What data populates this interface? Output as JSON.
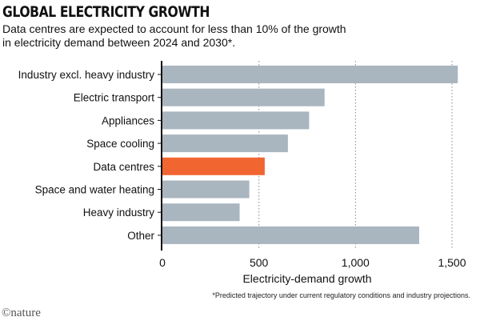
{
  "chart_data": {
    "type": "bar",
    "orientation": "horizontal",
    "title": "GLOBAL ELECTRICITY GROWTH",
    "subtitle": "Data centres are expected to account for less than 10% of the growth in electricity demand between 2024 and 2030*.",
    "categories": [
      "Industry excl. heavy industry",
      "Electric transport",
      "Appliances",
      "Space cooling",
      "Data centres",
      "Space and water heating",
      "Heavy industry",
      "Other"
    ],
    "values": [
      1530,
      840,
      760,
      650,
      530,
      450,
      400,
      1330
    ],
    "highlight": "Data centres",
    "colors": {
      "default": "#a9b5bf",
      "highlight": "#f06530",
      "axis": "#111111",
      "grid": "#888888"
    },
    "xlabel": "Electricity-demand growth",
    "xlim": [
      0,
      1550
    ],
    "xticks": [
      0,
      500,
      1000,
      1500
    ],
    "xtick_labels": [
      "0",
      "500",
      "1,000",
      "1,500"
    ],
    "grid": "vertical dotted",
    "footnote": "*Predicted trajectory under current regulatory conditions and industry projections.",
    "source": "©nature"
  }
}
